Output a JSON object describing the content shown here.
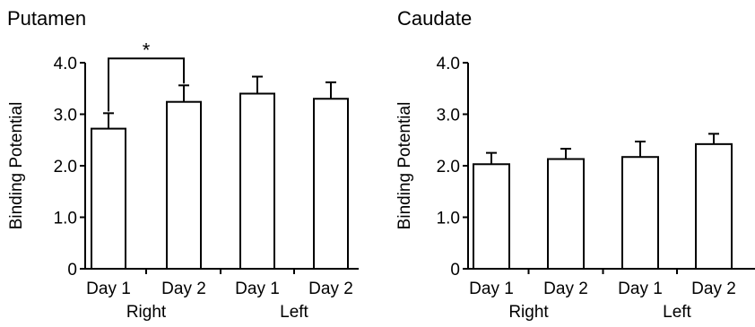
{
  "chart_data": [
    {
      "type": "bar",
      "title": "Putamen",
      "ylabel": "Binding Potential",
      "ylim": [
        0,
        4.0
      ],
      "yticks": [
        "0",
        "1.0",
        "2.0",
        "3.0",
        "4.0"
      ],
      "categories": [
        "Day 1",
        "Day 2",
        "Day 1",
        "Day 2"
      ],
      "groups": [
        {
          "label": "Right",
          "span": [
            0,
            1
          ]
        },
        {
          "label": "Left",
          "span": [
            2,
            3
          ]
        }
      ],
      "values": [
        2.72,
        3.24,
        3.4,
        3.3
      ],
      "errors": [
        0.3,
        0.32,
        0.33,
        0.32
      ],
      "significance": [
        {
          "between": [
            0,
            1
          ],
          "label": "*"
        }
      ]
    },
    {
      "type": "bar",
      "title": "Caudate",
      "ylabel": "Binding Potential",
      "ylim": [
        0,
        4.0
      ],
      "yticks": [
        "0",
        "1.0",
        "2.0",
        "3.0",
        "4.0"
      ],
      "categories": [
        "Day 1",
        "Day 2",
        "Day 1",
        "Day 2"
      ],
      "groups": [
        {
          "label": "Right",
          "span": [
            0,
            1
          ]
        },
        {
          "label": "Left",
          "span": [
            2,
            3
          ]
        }
      ],
      "values": [
        2.03,
        2.13,
        2.17,
        2.42
      ],
      "errors": [
        0.22,
        0.2,
        0.3,
        0.2
      ],
      "significance": []
    }
  ]
}
